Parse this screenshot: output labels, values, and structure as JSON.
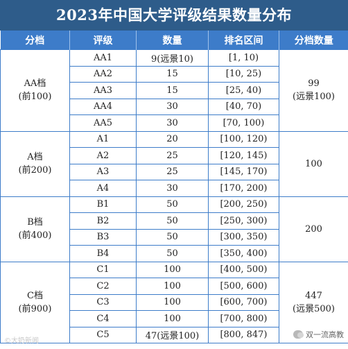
{
  "title": "2023年中国大学评级结果数量分布",
  "headers": [
    "分档",
    "评级",
    "数量",
    "排名区间",
    "分档数量"
  ],
  "groups": [
    {
      "name": "AA档",
      "range_label": "(前100)",
      "total": "99",
      "total_note": "(远景100)",
      "rows": [
        {
          "grade": "AA1",
          "count": "9(远景10)",
          "range": "[1, 10)"
        },
        {
          "grade": "AA2",
          "count": "15",
          "range": "[10, 25)"
        },
        {
          "grade": "AA3",
          "count": "15",
          "range": "[25, 40)"
        },
        {
          "grade": "AA4",
          "count": "30",
          "range": "[40, 70)"
        },
        {
          "grade": "AA5",
          "count": "30",
          "range": "[70, 100)"
        }
      ]
    },
    {
      "name": "A档",
      "range_label": "(前200)",
      "total": "100",
      "total_note": "",
      "rows": [
        {
          "grade": "A1",
          "count": "20",
          "range": "[100, 120)"
        },
        {
          "grade": "A2",
          "count": "25",
          "range": "[120, 145)"
        },
        {
          "grade": "A3",
          "count": "25",
          "range": "[145, 170)"
        },
        {
          "grade": "A4",
          "count": "30",
          "range": "[170, 200)"
        }
      ]
    },
    {
      "name": "B档",
      "range_label": "(前400)",
      "total": "200",
      "total_note": "",
      "rows": [
        {
          "grade": "B1",
          "count": "50",
          "range": "[200, 250)"
        },
        {
          "grade": "B2",
          "count": "50",
          "range": "[250, 300)"
        },
        {
          "grade": "B3",
          "count": "50",
          "range": "[300, 350)"
        },
        {
          "grade": "B4",
          "count": "50",
          "range": "[350, 400)"
        }
      ]
    },
    {
      "name": "C档",
      "range_label": "(前900)",
      "total": "447",
      "total_note": "(远景500)",
      "rows": [
        {
          "grade": "C1",
          "count": "100",
          "range": "[400, 500)"
        },
        {
          "grade": "C2",
          "count": "100",
          "range": "[500, 600)"
        },
        {
          "grade": "C3",
          "count": "100",
          "range": "[600, 700)"
        },
        {
          "grade": "C4",
          "count": "100",
          "range": "[700, 800)"
        },
        {
          "grade": "C5",
          "count": "47(远景100)",
          "range": "[800, 847)"
        }
      ]
    }
  ],
  "watermark_left": "©大奶新闻",
  "watermark_right": "双一流高教",
  "colors": {
    "title_bg": "#2e5c8a",
    "header_bg": "#3d7cc9",
    "border": "#3d7cc9"
  }
}
